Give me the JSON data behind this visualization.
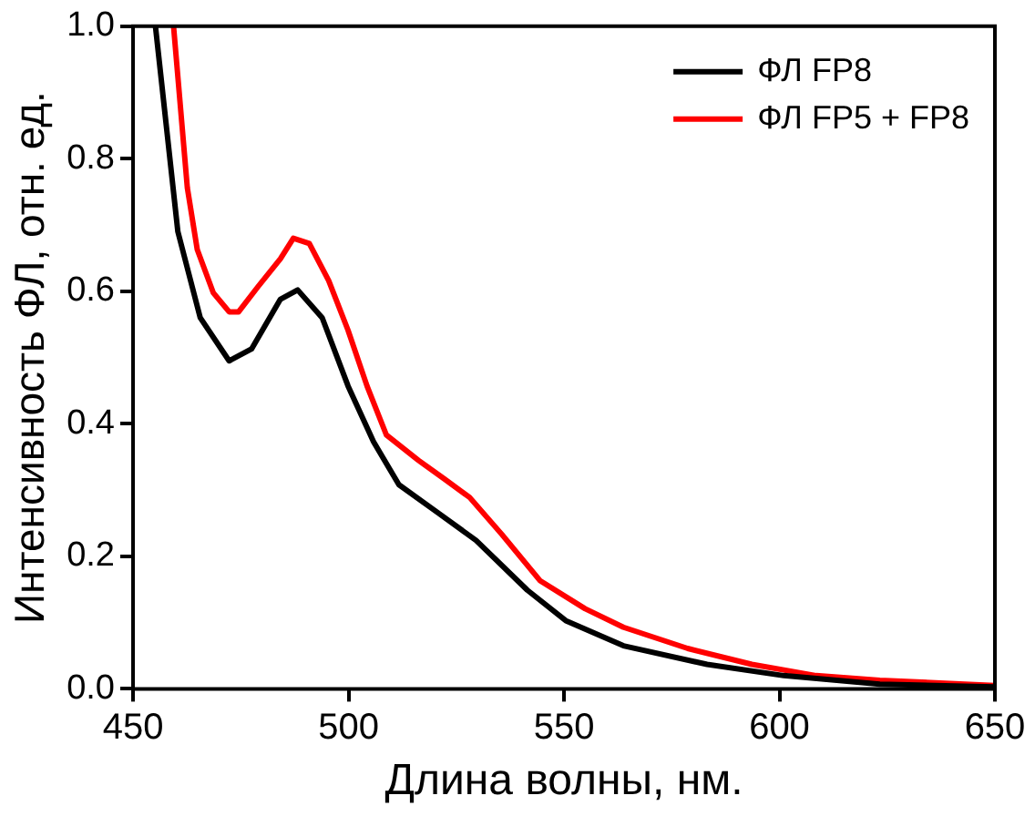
{
  "chart_data": {
    "type": "line",
    "xlabel": "Длина волны, нм.",
    "ylabel": "Интенсивность ФЛ, отн. ед.",
    "xlim": [
      450,
      650
    ],
    "xticks": [
      450,
      500,
      550,
      600,
      650
    ],
    "ylim": [
      0,
      1
    ],
    "yticks": [
      {
        "value": 0,
        "label": "0.0"
      },
      {
        "value": 0.2,
        "label": "0.2"
      },
      {
        "value": 0.4,
        "label": "0.4"
      },
      {
        "value": 0.6,
        "label": "0.6"
      },
      {
        "value": 0.8,
        "label": "0.8"
      },
      {
        "value": 1,
        "label": "1.0"
      }
    ],
    "grid": false,
    "legend": "top right",
    "marker": "none",
    "line_style": "solid",
    "series": [
      {
        "name": "ФЛ FP8",
        "color": "#000000",
        "x": [
          455.2,
          460.4,
          465.6,
          472.3,
          477.5,
          484.2,
          488.2,
          493.9,
          499.9,
          505.8,
          511.7,
          520.7,
          529.6,
          541.5,
          550.4,
          563.8,
          583.2,
          601,
          623.3,
          650
        ],
        "values": [
          1.0,
          0.69,
          0.56,
          0.495,
          0.513,
          0.588,
          0.602,
          0.56,
          0.457,
          0.373,
          0.308,
          0.266,
          0.224,
          0.149,
          0.103,
          0.065,
          0.037,
          0.02,
          0.007,
          0.003
        ]
      },
      {
        "name": "ФЛ FP5 + FP8",
        "color": "#ff0000",
        "x": [
          459.4,
          462.6,
          464.9,
          468.6,
          472.3,
          474.5,
          479,
          484.2,
          487.2,
          490.9,
          495.4,
          499.9,
          504.3,
          508.8,
          516.2,
          522.2,
          528.1,
          535.6,
          544.5,
          554.9,
          563.8,
          578.7,
          593.6,
          608.5,
          623.3,
          650
        ],
        "values": [
          1.0,
          0.756,
          0.663,
          0.598,
          0.569,
          0.569,
          0.607,
          0.649,
          0.68,
          0.672,
          0.616,
          0.541,
          0.457,
          0.383,
          0.345,
          0.317,
          0.289,
          0.233,
          0.163,
          0.121,
          0.093,
          0.061,
          0.037,
          0.02,
          0.013,
          0.005
        ]
      }
    ]
  }
}
